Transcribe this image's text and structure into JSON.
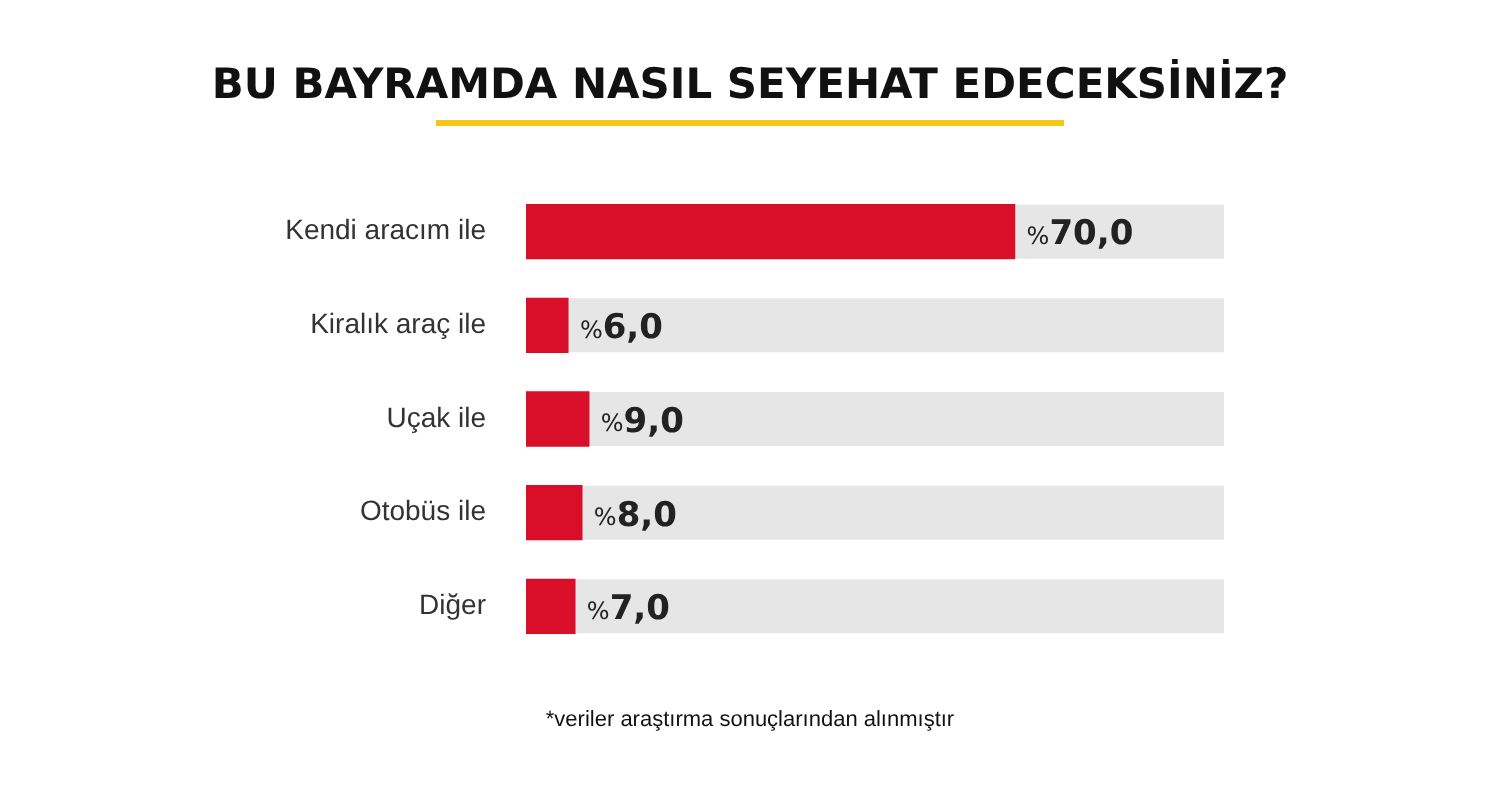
{
  "chart_data": {
    "type": "bar",
    "orientation": "horizontal",
    "title": "BU BAYRAMDA NASIL SEYEHAT EDECEKSİNİZ?",
    "categories": [
      "Kendi aracım ile",
      "Kiralık araç ile",
      "Uçak ile",
      "Otobüs ile",
      "Diğer"
    ],
    "values": [
      70,
      6,
      9,
      8,
      7
    ],
    "value_labels": [
      "%70,0",
      "%6,0",
      "%9,0",
      "%8,0",
      "%7,0"
    ],
    "color": "#d90f2a",
    "xlim": [
      0,
      100
    ],
    "tick_labels": "y",
    "grid": false,
    "legend": false,
    "annotations": [
      "*veriler araştırma sonuçlarından alınmıştır"
    ]
  }
}
